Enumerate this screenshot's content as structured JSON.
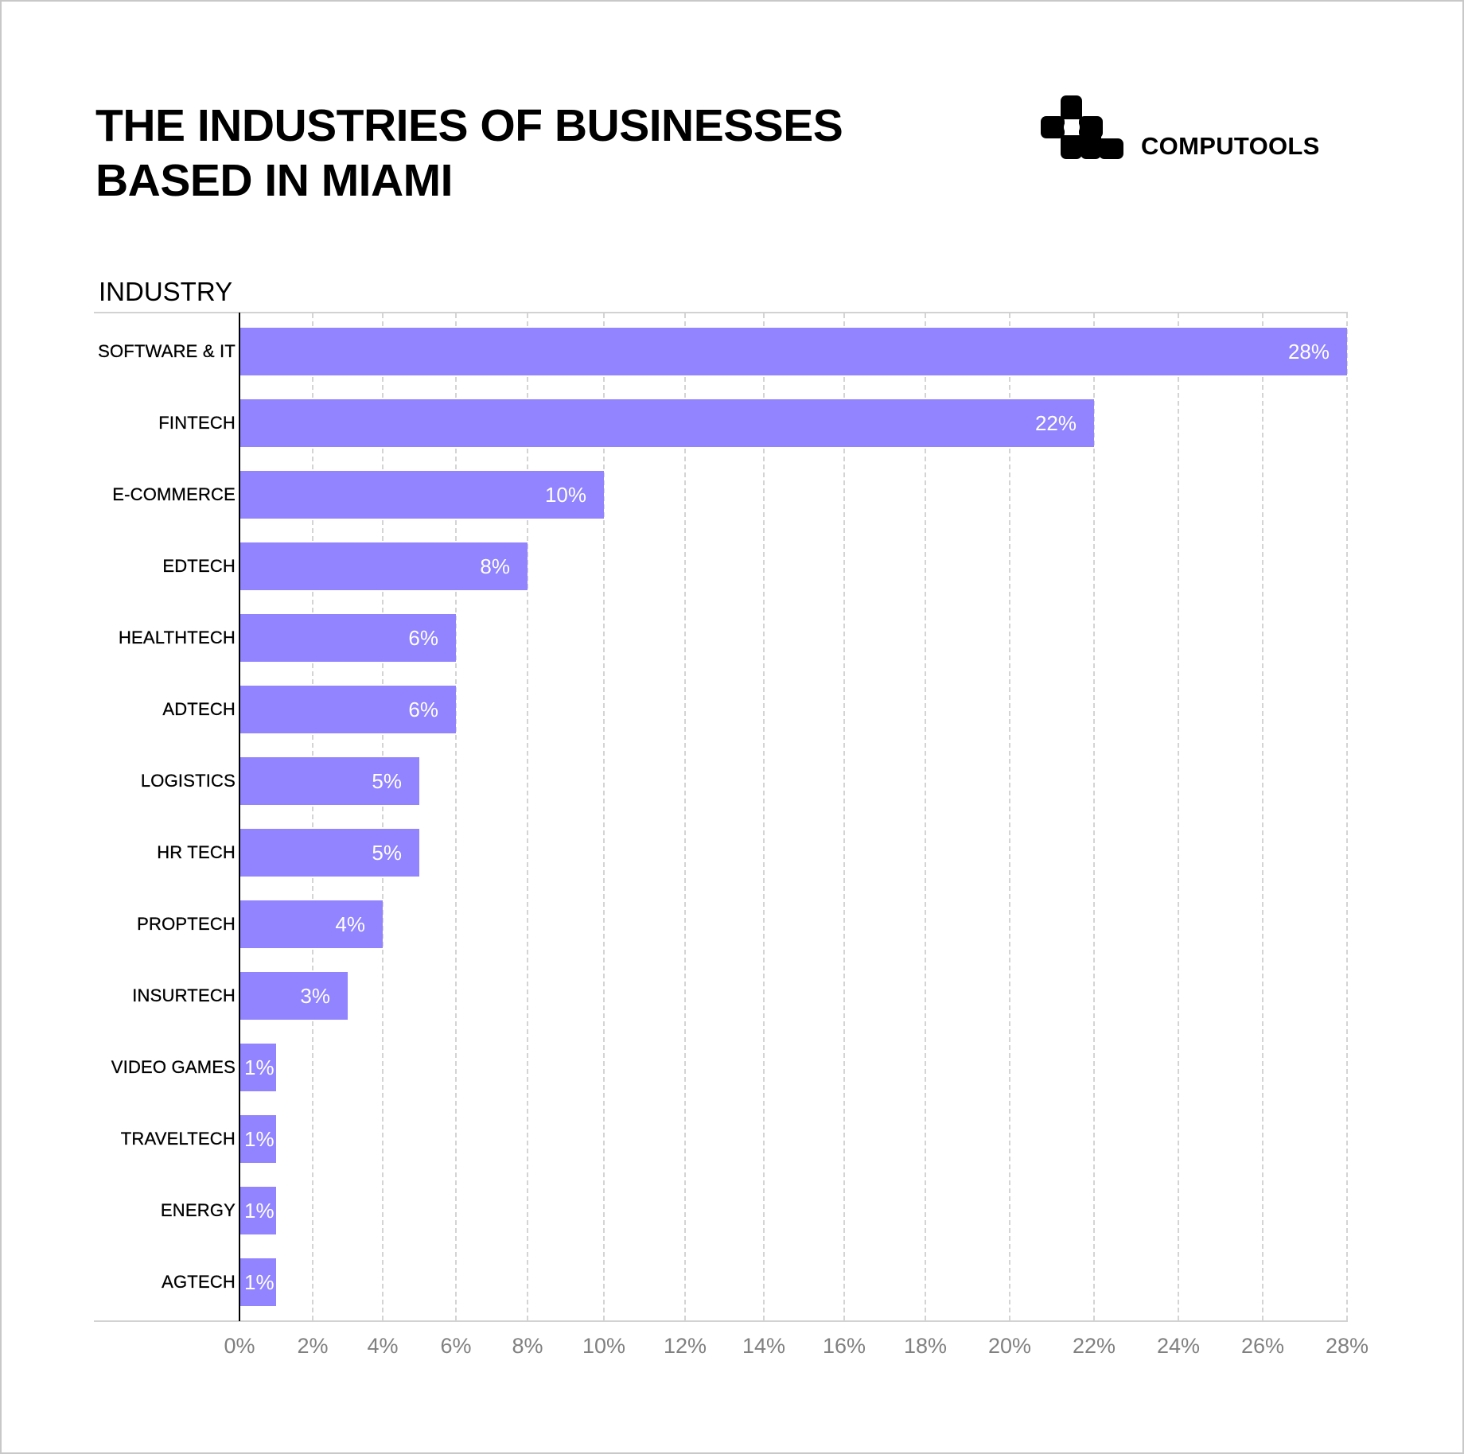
{
  "header": {
    "title_lines": [
      "THE INDUSTRIES OF BUSINESSES",
      "BASED IN MIAMI"
    ],
    "brand": "COMPUTOOLS",
    "logo_icon": "computools-logo-icon"
  },
  "colors": {
    "bar": "#9184fe",
    "bar_label": "#ffffff",
    "tick_label": "#808080",
    "gridline": "#d4d4d4",
    "axis": "#000000"
  },
  "chart_data": {
    "type": "bar",
    "orientation": "horizontal",
    "title": "THE INDUSTRIES OF BUSINESSES BASED IN MIAMI",
    "xlabel": "",
    "ylabel": "INDUSTRY",
    "categories": [
      "SOFTWARE & IT",
      "FINTECH",
      "E-COMMERCE",
      "EDTECH",
      "HEALTHTECH",
      "ADTECH",
      "LOGISTICS",
      "HR TECH",
      "PROPTECH",
      "INSURTECH",
      "VIDEO GAMES",
      "TRAVELTECH",
      "ENERGY",
      "AGTECH"
    ],
    "values": [
      28,
      22,
      10,
      8,
      6,
      6,
      5,
      5,
      4,
      3,
      1,
      1,
      1,
      1
    ],
    "value_labels": [
      "28%",
      "22%",
      "10%",
      "8%",
      "6%",
      "6%",
      "5%",
      "5%",
      "4%",
      "3%",
      "1%",
      "1%",
      "1%",
      "1%"
    ],
    "unit": "%",
    "xlim": [
      0,
      28
    ],
    "x_ticks": [
      0,
      2,
      4,
      6,
      8,
      10,
      12,
      14,
      16,
      18,
      20,
      22,
      24,
      26,
      28
    ],
    "x_tick_labels": [
      "0%",
      "2%",
      "4%",
      "6%",
      "8%",
      "10%",
      "12%",
      "14%",
      "16%",
      "18%",
      "20%",
      "22%",
      "24%",
      "26%",
      "28%"
    ],
    "grid": "vertical dashed",
    "legend": "none"
  }
}
